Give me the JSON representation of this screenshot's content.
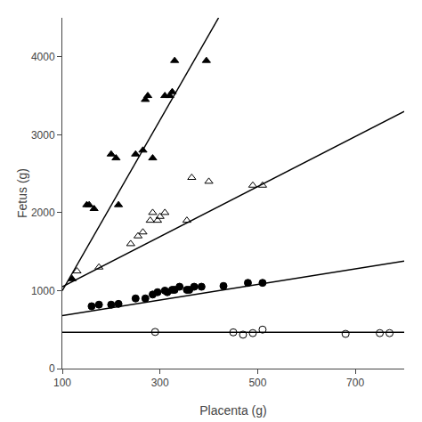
{
  "chart_data": {
    "type": "scatter",
    "xlabel": "Placenta (g)",
    "ylabel": "Fetus (g)",
    "xlim": [
      100,
      800
    ],
    "ylim": [
      0,
      4500
    ],
    "xticks": [
      100,
      300,
      500,
      700
    ],
    "yticks": [
      0,
      1000,
      2000,
      3000,
      4000
    ],
    "grid": false,
    "series": [
      {
        "type": "line",
        "line_style": "solid",
        "color": "#000000",
        "x": [
          100,
          420
        ],
        "values": [
          1000,
          4500
        ]
      },
      {
        "type": "line",
        "line_style": "solid",
        "color": "#000000",
        "x": [
          100,
          800
        ],
        "values": [
          1050,
          3300
        ]
      },
      {
        "type": "line",
        "line_style": "solid",
        "color": "#000000",
        "x": [
          100,
          800
        ],
        "values": [
          680,
          1380
        ]
      },
      {
        "type": "line",
        "line_style": "solid",
        "color": "#000000",
        "x": [
          100,
          800
        ],
        "values": [
          465,
          465
        ]
      },
      {
        "type": "scatter",
        "marker": "triangle-up",
        "color": "#000000",
        "x": [
          120,
          150,
          155,
          165,
          200,
          210,
          215,
          250,
          265,
          270,
          275,
          285,
          310,
          320,
          325,
          330,
          395
        ],
        "values": [
          1150,
          2100,
          2100,
          2050,
          2750,
          2700,
          2100,
          2750,
          2800,
          3450,
          3500,
          2700,
          3500,
          3500,
          3550,
          3950,
          3950
        ]
      },
      {
        "type": "scatter",
        "marker": "triangle-up-open",
        "color": "#000000",
        "x": [
          130,
          175,
          240,
          255,
          265,
          280,
          285,
          295,
          300,
          310,
          355,
          365,
          400,
          490,
          510
        ],
        "values": [
          1250,
          1300,
          1600,
          1700,
          1750,
          1900,
          2000,
          1900,
          1950,
          2000,
          1900,
          2450,
          2400,
          2350,
          2350
        ]
      },
      {
        "type": "scatter",
        "marker": "circle",
        "color": "#000000",
        "x": [
          160,
          175,
          200,
          215,
          250,
          270,
          285,
          295,
          310,
          315,
          325,
          330,
          340,
          355,
          360,
          370,
          385,
          430,
          480,
          510
        ],
        "values": [
          800,
          820,
          820,
          830,
          900,
          900,
          950,
          980,
          1000,
          980,
          1010,
          1010,
          1050,
          1010,
          1010,
          1050,
          1050,
          1060,
          1100,
          1100
        ]
      },
      {
        "type": "scatter",
        "marker": "circle-open",
        "color": "#000000",
        "x": [
          290,
          450,
          470,
          490,
          510,
          680,
          750,
          770
        ],
        "values": [
          470,
          465,
          435,
          455,
          500,
          445,
          455,
          455
        ]
      }
    ]
  }
}
